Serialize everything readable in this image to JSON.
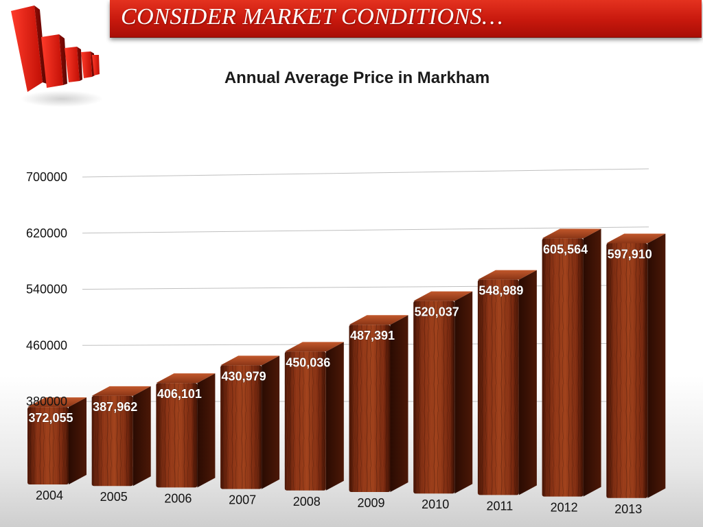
{
  "header": {
    "title": "CONSIDER MARKET CONDITIONS…",
    "logo_icon": "red-3d-bar-chart-logo-icon"
  },
  "colors": {
    "header_red": "#c7180d",
    "bar_wood": "#7a2a12",
    "bar_wood_dark": "#3a1205",
    "bar_highlight": "#b24a22",
    "grid": "#bfbfbf"
  },
  "chart_data": {
    "type": "bar",
    "title": "Annual Average Price in Markham",
    "xlabel": "",
    "ylabel": "",
    "categories": [
      "2004",
      "2005",
      "2006",
      "2007",
      "2008",
      "2009",
      "2010",
      "2011",
      "2012",
      "2013"
    ],
    "values": [
      372055,
      387962,
      406101,
      430979,
      450036,
      487391,
      520037,
      548989,
      605564,
      597910
    ],
    "value_labels": [
      "372,055",
      "387,962",
      "406,101",
      "430,979",
      "450,036",
      "487,391",
      "520,037",
      "548,989",
      "605,564",
      "597,910"
    ],
    "y_ticks": [
      380000,
      460000,
      540000,
      620000,
      700000
    ],
    "y_tick_labels": [
      "380000",
      "460000",
      "540000",
      "620000",
      "700000"
    ],
    "ylim": [
      300000,
      700000
    ],
    "grid": true,
    "legend": "none",
    "style": "3d-wood-texture"
  }
}
